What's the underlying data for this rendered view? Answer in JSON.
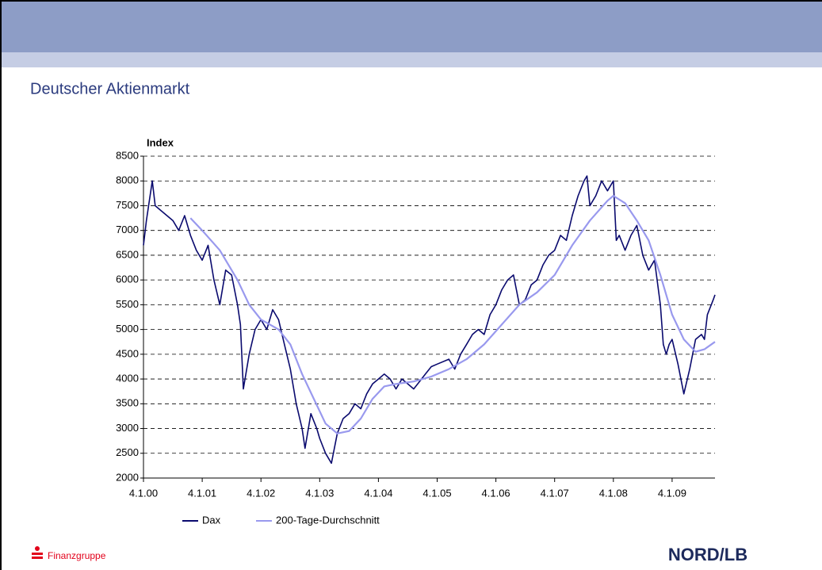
{
  "header": {
    "title": "Deutscher Aktienmarkt"
  },
  "chart_data": {
    "type": "line",
    "y_label": "Index",
    "ylim": [
      2000,
      8500
    ],
    "yticks": [
      2000,
      2500,
      3000,
      3500,
      4000,
      4500,
      5000,
      5500,
      6000,
      6500,
      7000,
      7500,
      8000,
      8500
    ],
    "xlim": [
      2000,
      2009.73
    ],
    "xticks": [
      {
        "value": 2000,
        "label": "4.1.00"
      },
      {
        "value": 2001,
        "label": "4.1.01"
      },
      {
        "value": 2002,
        "label": "4.1.02"
      },
      {
        "value": 2003,
        "label": "4.1.03"
      },
      {
        "value": 2004,
        "label": "4.1.04"
      },
      {
        "value": 2005,
        "label": "4.1.05"
      },
      {
        "value": 2006,
        "label": "4.1.06"
      },
      {
        "value": 2007,
        "label": "4.1.07"
      },
      {
        "value": 2008,
        "label": "4.1.08"
      },
      {
        "value": 2009,
        "label": "4.1.09"
      }
    ],
    "grid": true,
    "series": [
      {
        "name": "Dax",
        "color": "#0a0a6e",
        "x": [
          2000.0,
          2000.05,
          2000.1,
          2000.15,
          2000.2,
          2000.3,
          2000.5,
          2000.6,
          2000.7,
          2000.8,
          2000.9,
          2001.0,
          2001.1,
          2001.2,
          2001.3,
          2001.4,
          2001.5,
          2001.6,
          2001.65,
          2001.7,
          2001.8,
          2001.9,
          2002.0,
          2002.1,
          2002.2,
          2002.3,
          2002.4,
          2002.5,
          2002.6,
          2002.7,
          2002.75,
          2002.85,
          2002.95,
          2003.0,
          2003.1,
          2003.2,
          2003.3,
          2003.4,
          2003.5,
          2003.6,
          2003.7,
          2003.8,
          2003.9,
          2004.0,
          2004.1,
          2004.2,
          2004.3,
          2004.4,
          2004.5,
          2004.6,
          2004.7,
          2004.8,
          2004.9,
          2005.0,
          2005.2,
          2005.3,
          2005.4,
          2005.5,
          2005.6,
          2005.7,
          2005.8,
          2005.9,
          2006.0,
          2006.1,
          2006.2,
          2006.3,
          2006.4,
          2006.5,
          2006.6,
          2006.7,
          2006.8,
          2006.9,
          2007.0,
          2007.1,
          2007.2,
          2007.3,
          2007.4,
          2007.5,
          2007.55,
          2007.6,
          2007.7,
          2007.8,
          2007.9,
          2008.0,
          2008.05,
          2008.1,
          2008.2,
          2008.3,
          2008.4,
          2008.5,
          2008.6,
          2008.7,
          2008.8,
          2008.85,
          2008.9,
          2008.95,
          2009.0,
          2009.1,
          2009.2,
          2009.3,
          2009.4,
          2009.5,
          2009.55,
          2009.6,
          2009.7,
          2009.73
        ],
        "values": [
          6700,
          7200,
          7600,
          8000,
          7500,
          7400,
          7200,
          7000,
          7300,
          6900,
          6600,
          6400,
          6700,
          6000,
          5500,
          6200,
          6100,
          5500,
          5100,
          3800,
          4500,
          5000,
          5200,
          5000,
          5400,
          5200,
          4700,
          4200,
          3500,
          3000,
          2600,
          3300,
          3000,
          2800,
          2500,
          2300,
          2900,
          3200,
          3300,
          3500,
          3400,
          3700,
          3900,
          4000,
          4100,
          4000,
          3800,
          4000,
          3900,
          3800,
          3950,
          4100,
          4250,
          4300,
          4400,
          4200,
          4500,
          4700,
          4900,
          5000,
          4900,
          5300,
          5500,
          5800,
          6000,
          6100,
          5500,
          5600,
          5900,
          6000,
          6300,
          6500,
          6600,
          6900,
          6800,
          7300,
          7700,
          8000,
          8100,
          7500,
          7700,
          8000,
          7800,
          8000,
          6800,
          6900,
          6600,
          6900,
          7100,
          6500,
          6200,
          6400,
          5500,
          4700,
          4500,
          4700,
          4800,
          4300,
          3700,
          4200,
          4800,
          4900,
          4800,
          5300,
          5600,
          5700
        ]
      },
      {
        "name": "200-Tage-Durchschnitt",
        "color": "#9999ee",
        "x": [
          2000.8,
          2001.0,
          2001.3,
          2001.6,
          2001.8,
          2002.0,
          2002.3,
          2002.5,
          2002.7,
          2002.9,
          2003.1,
          2003.3,
          2003.5,
          2003.7,
          2003.9,
          2004.1,
          2004.3,
          2004.6,
          2004.9,
          2005.2,
          2005.5,
          2005.8,
          2006.1,
          2006.4,
          2006.7,
          2007.0,
          2007.3,
          2007.6,
          2007.9,
          2008.0,
          2008.2,
          2008.4,
          2008.6,
          2008.8,
          2009.0,
          2009.2,
          2009.4,
          2009.55,
          2009.73
        ],
        "values": [
          7250,
          7000,
          6600,
          6000,
          5500,
          5200,
          5000,
          4700,
          4100,
          3600,
          3100,
          2900,
          2950,
          3200,
          3600,
          3850,
          3900,
          3950,
          4050,
          4200,
          4400,
          4700,
          5100,
          5500,
          5750,
          6100,
          6700,
          7200,
          7600,
          7700,
          7550,
          7200,
          6800,
          6100,
          5300,
          4800,
          4550,
          4600,
          4750
        ]
      }
    ]
  },
  "footer": {
    "left": "Finanzgruppe",
    "right": "NORD/LB"
  }
}
